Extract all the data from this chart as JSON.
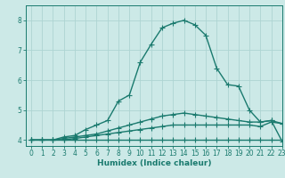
{
  "xlabel": "Humidex (Indice chaleur)",
  "xlim": [
    -0.5,
    23
  ],
  "ylim": [
    3.8,
    8.5
  ],
  "yticks": [
    4,
    5,
    6,
    7,
    8
  ],
  "xticks": [
    0,
    1,
    2,
    3,
    4,
    5,
    6,
    7,
    8,
    9,
    10,
    11,
    12,
    13,
    14,
    15,
    16,
    17,
    18,
    19,
    20,
    21,
    22,
    23
  ],
  "bg_color": "#cce9e7",
  "grid_color": "#aed4d2",
  "line_color": "#1a7a6e",
  "line_width": 1.0,
  "marker": "+",
  "marker_size": 4,
  "curves": [
    [
      4.0,
      4.0,
      4.0,
      4.0,
      4.0,
      4.0,
      4.0,
      4.0,
      4.0,
      4.0,
      4.0,
      4.0,
      4.0,
      4.0,
      4.0,
      4.0,
      4.0,
      4.0,
      4.0,
      4.0,
      4.0,
      4.0,
      4.0,
      4.0
    ],
    [
      4.0,
      4.0,
      4.0,
      4.0,
      4.05,
      4.1,
      4.15,
      4.2,
      4.25,
      4.3,
      4.35,
      4.4,
      4.45,
      4.5,
      4.5,
      4.5,
      4.5,
      4.5,
      4.5,
      4.5,
      4.5,
      4.45,
      4.6,
      4.55
    ],
    [
      4.0,
      4.0,
      4.0,
      4.05,
      4.1,
      4.15,
      4.2,
      4.3,
      4.4,
      4.5,
      4.6,
      4.7,
      4.8,
      4.85,
      4.9,
      4.85,
      4.8,
      4.75,
      4.7,
      4.65,
      4.6,
      4.6,
      4.65,
      4.55
    ],
    [
      4.0,
      4.0,
      4.0,
      4.1,
      4.15,
      4.35,
      4.5,
      4.65,
      5.3,
      5.5,
      6.6,
      7.2,
      7.75,
      7.9,
      8.0,
      7.85,
      7.5,
      6.4,
      5.85,
      5.8,
      5.0,
      4.6,
      4.65,
      3.95
    ]
  ]
}
